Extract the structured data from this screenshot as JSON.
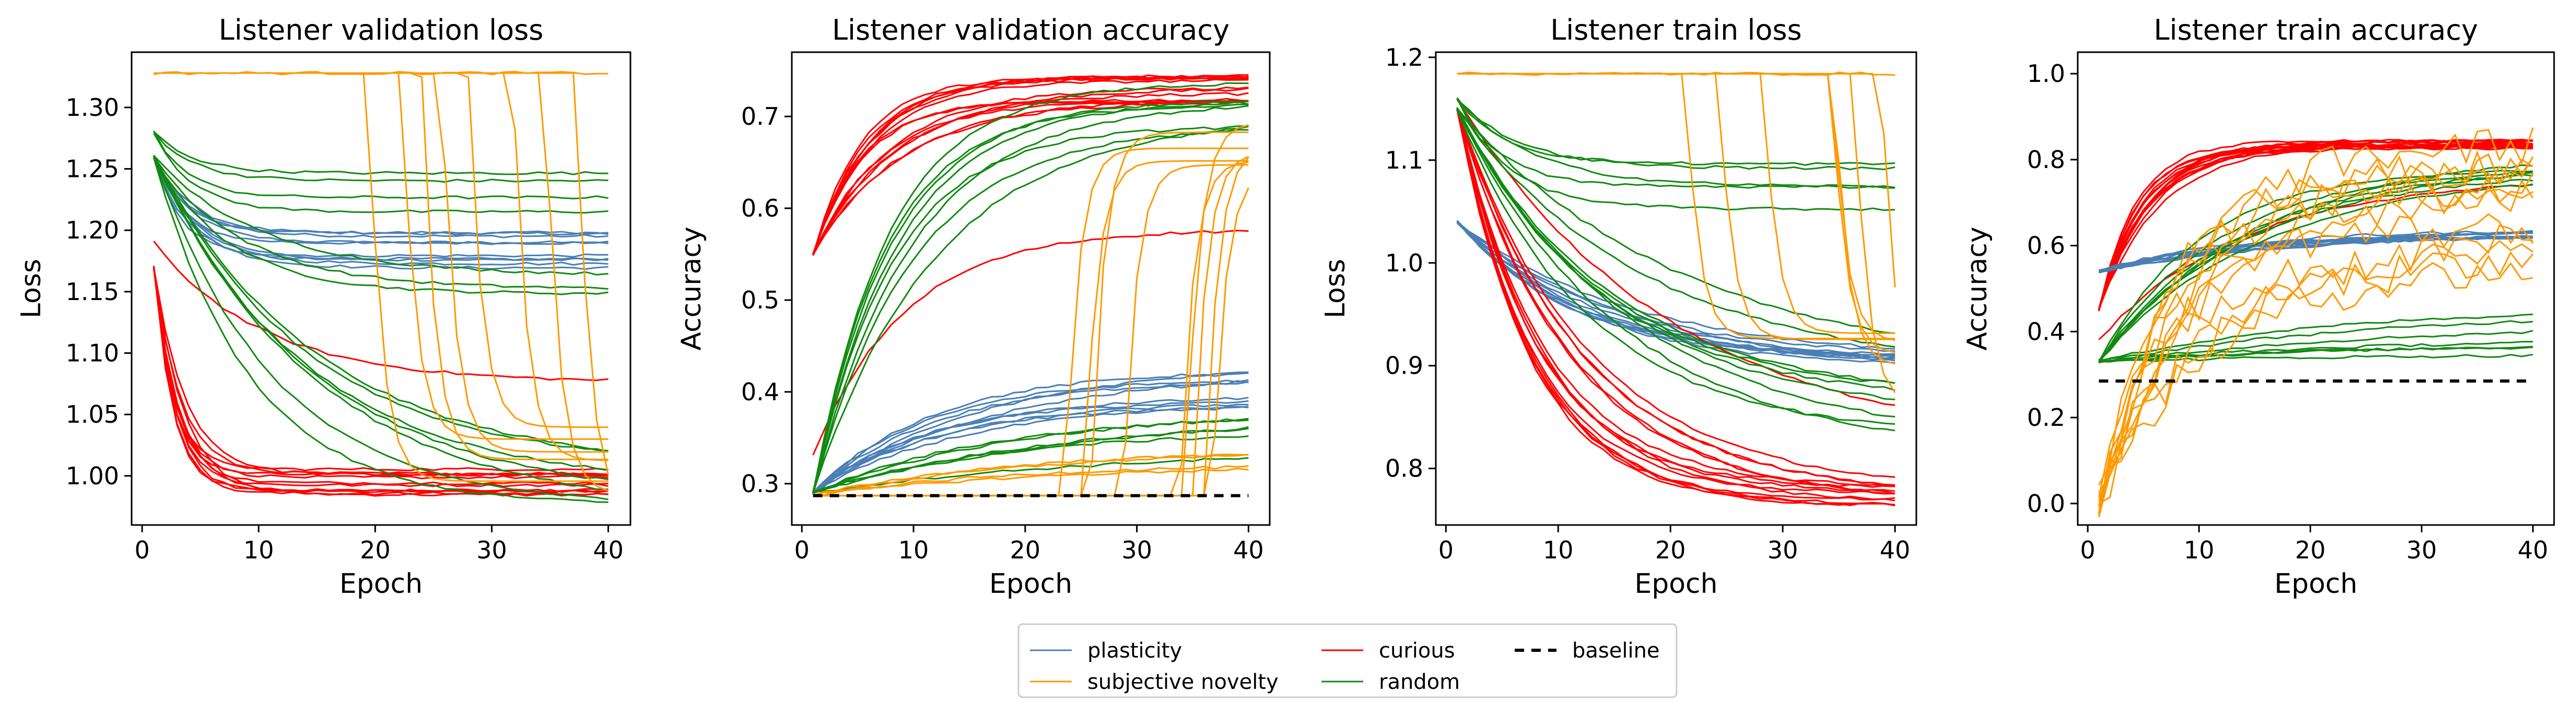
{
  "legend": {
    "items": [
      {
        "key": "plasticity",
        "label": "plasticity"
      },
      {
        "key": "subjective_novelty",
        "label": "subjective novelty"
      },
      {
        "key": "curious",
        "label": "curious"
      },
      {
        "key": "random",
        "label": "random"
      },
      {
        "key": "baseline",
        "label": "baseline"
      }
    ]
  },
  "colors": {
    "plasticity": "#4a7fb5",
    "subjective_novelty": "#ff9900",
    "curious": "#ff0000",
    "random": "#118a11",
    "baseline": "#000000"
  },
  "chart_data": [
    {
      "type": "line",
      "title": "Listener validation loss",
      "xlabel": "Epoch",
      "ylabel": "Loss",
      "xlim": [
        -0.9,
        41.9
      ],
      "ylim": [
        0.96,
        1.345
      ],
      "xticks": [
        0,
        10,
        20,
        30,
        40
      ],
      "yticks": [
        1.0,
        1.05,
        1.1,
        1.15,
        1.2,
        1.25,
        1.3
      ],
      "ytick_labels": [
        "1.00",
        "1.05",
        "1.10",
        "1.15",
        "1.20",
        "1.25",
        "1.30"
      ],
      "grid": false,
      "baseline": null,
      "families": [
        {
          "key": "plasticity",
          "runs": 10,
          "start": 1.26,
          "end": 1.185,
          "spread": 0.016,
          "rate": 0.35
        },
        {
          "key": "curious",
          "runs": 12,
          "start": 1.17,
          "end": 0.995,
          "spread": 0.012,
          "rate": 0.5
        },
        {
          "key": "curious",
          "runs": 1,
          "start": 1.19,
          "end": 1.075,
          "spread": 0.004,
          "rate": 0.1
        },
        {
          "key": "random",
          "runs": 4,
          "start": 1.28,
          "end": 1.235,
          "spread": 0.02,
          "rate": 0.3
        },
        {
          "key": "random",
          "runs": 3,
          "start": 1.26,
          "end": 1.165,
          "spread": 0.02,
          "rate": 0.15
        },
        {
          "key": "random",
          "runs": 7,
          "start": 1.26,
          "end": 0.995,
          "spread": 0.025,
          "rate": 0.1
        },
        {
          "key": "subjective_novelty",
          "runs": 1,
          "start": 1.328,
          "end": 1.328,
          "spread": 0.0,
          "rate": 0.0
        },
        {
          "key": "subjective_novelty",
          "runs": 8,
          "start": 1.328,
          "end": 1.0,
          "spread": 0.04,
          "rate": 0.25,
          "step": [
            19,
            38
          ]
        }
      ]
    },
    {
      "type": "line",
      "title": "Listener validation accuracy",
      "xlabel": "Epoch",
      "ylabel": "Accuracy",
      "xlim": [
        -0.9,
        41.9
      ],
      "ylim": [
        0.255,
        0.77
      ],
      "xticks": [
        0,
        10,
        20,
        30,
        40
      ],
      "yticks": [
        0.3,
        0.4,
        0.5,
        0.6,
        0.7
      ],
      "ytick_labels": [
        "0.3",
        "0.4",
        "0.5",
        "0.6",
        "0.7"
      ],
      "grid": false,
      "baseline": 0.287,
      "families": [
        {
          "key": "curious",
          "runs": 14,
          "start": 0.55,
          "end": 0.73,
          "spread": 0.015,
          "rate": 0.18
        },
        {
          "key": "curious",
          "runs": 1,
          "start": 0.33,
          "end": 0.575,
          "spread": 0.005,
          "rate": 0.12
        },
        {
          "key": "plasticity",
          "runs": 10,
          "start": 0.29,
          "end": 0.41,
          "spread": 0.025,
          "rate": 0.08
        },
        {
          "key": "random",
          "runs": 8,
          "start": 0.29,
          "end": 0.71,
          "spread": 0.03,
          "rate": 0.12
        },
        {
          "key": "random",
          "runs": 6,
          "start": 0.29,
          "end": 0.37,
          "spread": 0.05,
          "rate": 0.05
        },
        {
          "key": "subjective_novelty",
          "runs": 9,
          "start": 0.287,
          "end": 0.67,
          "spread": 0.03,
          "rate": 0.25,
          "step": [
            19,
            38
          ]
        },
        {
          "key": "subjective_novelty",
          "runs": 4,
          "start": 0.287,
          "end": 0.33,
          "spread": 0.01,
          "rate": 0.05
        }
      ]
    },
    {
      "type": "line",
      "title": "Listener train loss",
      "xlabel": "Epoch",
      "ylabel": "Loss",
      "xlim": [
        -0.9,
        41.9
      ],
      "ylim": [
        0.745,
        1.205
      ],
      "xticks": [
        0,
        10,
        20,
        30,
        40
      ],
      "yticks": [
        0.8,
        0.9,
        1.0,
        1.1,
        1.2
      ],
      "ytick_labels": [
        "0.8",
        "0.9",
        "1.0",
        "1.1",
        "1.2"
      ],
      "grid": false,
      "baseline": null,
      "families": [
        {
          "key": "plasticity",
          "runs": 10,
          "start": 1.04,
          "end": 0.9,
          "spread": 0.008,
          "rate": 0.08
        },
        {
          "key": "curious",
          "runs": 14,
          "start": 1.15,
          "end": 0.772,
          "spread": 0.01,
          "rate": 0.12
        },
        {
          "key": "curious",
          "runs": 1,
          "start": 1.16,
          "end": 0.815,
          "spread": 0.003,
          "rate": 0.07
        },
        {
          "key": "random",
          "runs": 5,
          "start": 1.16,
          "end": 1.07,
          "spread": 0.03,
          "rate": 0.2
        },
        {
          "key": "random",
          "runs": 9,
          "start": 1.15,
          "end": 0.86,
          "spread": 0.05,
          "rate": 0.07
        },
        {
          "key": "subjective_novelty",
          "runs": 1,
          "start": 1.184,
          "end": 1.184,
          "spread": 0.0,
          "rate": 0.0
        },
        {
          "key": "subjective_novelty",
          "runs": 8,
          "start": 1.184,
          "end": 0.9,
          "spread": 0.04,
          "rate": 0.25,
          "step": [
            21,
            39
          ]
        }
      ]
    },
    {
      "type": "line",
      "title": "Listener train accuracy",
      "xlabel": "Epoch",
      "ylabel": "Accuracy",
      "xlim": [
        -0.9,
        41.9
      ],
      "ylim": [
        -0.05,
        1.05
      ],
      "xticks": [
        0,
        10,
        20,
        30,
        40
      ],
      "yticks": [
        0.0,
        0.2,
        0.4,
        0.6,
        0.8,
        1.0
      ],
      "ytick_labels": [
        "0.0",
        "0.2",
        "0.4",
        "0.6",
        "0.8",
        "1.0"
      ],
      "grid": false,
      "baseline": 0.285,
      "families": [
        {
          "key": "curious",
          "runs": 14,
          "start": 0.45,
          "end": 0.835,
          "spread": 0.01,
          "rate": 0.25
        },
        {
          "key": "curious",
          "runs": 1,
          "start": 0.38,
          "end": 0.76,
          "spread": 0.005,
          "rate": 0.08
        },
        {
          "key": "plasticity",
          "runs": 10,
          "start": 0.54,
          "end": 0.63,
          "spread": 0.008,
          "rate": 0.08
        },
        {
          "key": "random",
          "runs": 7,
          "start": 0.33,
          "end": 0.8,
          "spread": 0.03,
          "rate": 0.09
        },
        {
          "key": "random",
          "runs": 7,
          "start": 0.33,
          "end": 0.4,
          "spread": 0.06,
          "rate": 0.05
        },
        {
          "key": "subjective_novelty",
          "runs": 12,
          "start": 0.0,
          "end": 0.7,
          "spread": 0.15,
          "rate": 0.14,
          "noise": 0.08
        }
      ]
    }
  ]
}
